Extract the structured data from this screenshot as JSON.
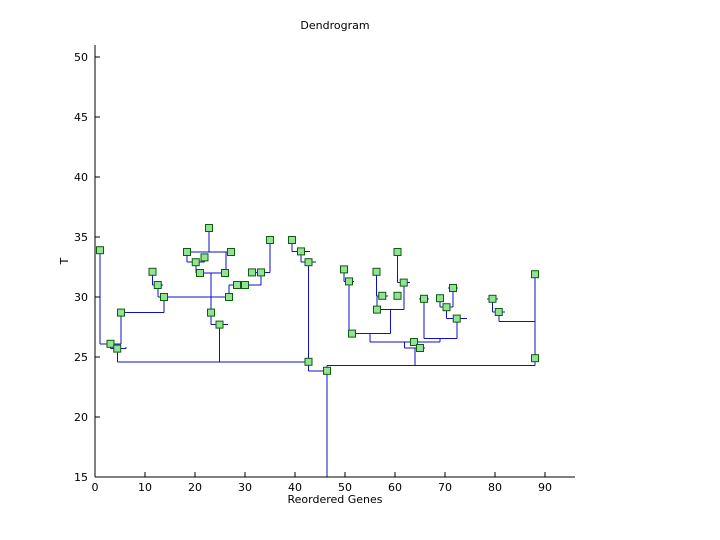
{
  "chart_data": {
    "type": "dendrogram",
    "title": "Dendrogram",
    "xlabel": "Reordered Genes",
    "ylabel": "T",
    "xlim": [
      0,
      96
    ],
    "ylim": [
      15,
      51
    ],
    "xticks": [
      0,
      10,
      20,
      30,
      40,
      50,
      60,
      70,
      80,
      90
    ],
    "yticks": [
      15,
      20,
      25,
      30,
      35,
      40,
      45,
      50
    ],
    "grid": false,
    "legend": "none",
    "line_color": "#0f0fc8",
    "marker_fill": "#94e294",
    "marker_edge": "#0b5e0b",
    "axis_color": "#000000",
    "links_format": "[x1, x2, merge_height, left_child_top, right_child_top]",
    "links": [
      [
        1.0,
        5.2,
        26.1,
        33.9,
        28.7
      ],
      [
        3.1,
        6.2,
        25.7,
        26.1,
        25.85
      ],
      [
        4.45,
        42.7,
        24.6,
        25.7,
        32.9
      ],
      [
        5.2,
        13.8,
        28.7,
        28.7,
        30.0
      ],
      [
        11.5,
        13.6,
        31.0,
        32.1,
        31.0
      ],
      [
        12.55,
        26.8,
        30.0,
        31.0,
        31.0
      ],
      [
        18.4,
        27.2,
        33.75,
        33.75,
        33.75
      ],
      [
        18.4,
        21.9,
        32.9,
        33.75,
        33.3
      ],
      [
        20.15,
        26.2,
        32.0,
        32.9,
        33.75
      ],
      [
        26.8,
        33.2,
        31.0,
        31.0,
        32.05
      ],
      [
        31.4,
        35.0,
        32.05,
        32.05,
        34.75
      ],
      [
        23.2,
        26.6,
        27.7,
        32.0,
        27.7
      ],
      [
        39.4,
        43.0,
        33.8,
        34.75,
        33.8
      ],
      [
        41.2,
        44.2,
        32.9,
        33.8,
        32.9
      ],
      [
        42.7,
        46.4,
        23.85,
        24.6,
        23.85
      ],
      [
        46.4,
        88.0,
        24.3,
        24.3,
        27.95
      ],
      [
        49.8,
        51.8,
        31.3,
        32.3,
        31.3
      ],
      [
        50.8,
        59.1,
        26.95,
        31.3,
        28.95
      ],
      [
        56.3,
        58.6,
        30.1,
        32.1,
        30.1
      ],
      [
        56.4,
        61.75,
        28.95,
        30.1,
        31.2
      ],
      [
        60.5,
        63.0,
        31.2,
        33.75,
        31.2
      ],
      [
        54.95,
        69.0,
        26.25,
        26.95,
        26.55
      ],
      [
        61.9,
        66.0,
        25.75,
        26.25,
        25.75
      ],
      [
        64.8,
        66.8,
        29.85,
        29.85,
        29.85
      ],
      [
        65.8,
        72.35,
        26.55,
        29.85,
        28.2
      ],
      [
        69.0,
        71.6,
        29.15,
        29.9,
        30.75
      ],
      [
        70.6,
        72.6,
        30.75,
        30.75,
        30.75
      ],
      [
        70.3,
        74.4,
        28.2,
        29.15,
        28.2
      ],
      [
        78.4,
        80.6,
        29.85,
        29.85,
        29.85
      ],
      [
        79.5,
        82.0,
        28.75,
        29.85,
        28.75
      ],
      [
        80.75,
        88.0,
        27.95,
        28.75,
        31.9
      ]
    ],
    "stems_format": "extra vertical segments {x, y1, y2}",
    "stems": [
      {
        "x": 22.8,
        "y1": 33.75,
        "y2": 35.75
      },
      {
        "x": 46.4,
        "y1": 15.0,
        "y2": 23.85
      },
      {
        "x": 46.4,
        "y1": 23.85,
        "y2": 24.3
      },
      {
        "x": 63.95,
        "y1": 24.3,
        "y2": 25.75
      },
      {
        "x": 24.9,
        "y1": 24.6,
        "y2": 27.7
      }
    ],
    "markers_format": "cluster node squares [x, T]",
    "markers": [
      [
        1.0,
        33.9
      ],
      [
        3.1,
        26.1
      ],
      [
        4.45,
        25.7
      ],
      [
        5.2,
        28.7
      ],
      [
        11.5,
        32.1
      ],
      [
        12.55,
        31.0
      ],
      [
        13.8,
        30.0
      ],
      [
        18.4,
        33.75
      ],
      [
        20.15,
        32.9
      ],
      [
        21.9,
        33.3
      ],
      [
        21.0,
        32.0
      ],
      [
        26.0,
        32.0
      ],
      [
        22.8,
        35.75
      ],
      [
        27.2,
        33.75
      ],
      [
        28.4,
        31.0
      ],
      [
        26.8,
        30.0
      ],
      [
        30.0,
        31.0
      ],
      [
        31.4,
        32.05
      ],
      [
        33.2,
        32.05
      ],
      [
        35.0,
        34.75
      ],
      [
        23.2,
        28.7
      ],
      [
        24.9,
        27.7
      ],
      [
        39.4,
        34.75
      ],
      [
        41.2,
        33.8
      ],
      [
        42.7,
        32.9
      ],
      [
        42.7,
        24.6
      ],
      [
        46.4,
        23.85
      ],
      [
        49.8,
        32.3
      ],
      [
        50.8,
        31.3
      ],
      [
        51.4,
        26.95
      ],
      [
        56.3,
        32.1
      ],
      [
        57.45,
        30.1
      ],
      [
        56.4,
        28.95
      ],
      [
        60.5,
        30.1
      ],
      [
        60.5,
        33.75
      ],
      [
        61.75,
        31.2
      ],
      [
        65.8,
        29.85
      ],
      [
        63.8,
        26.25
      ],
      [
        65.0,
        25.75
      ],
      [
        69.0,
        29.9
      ],
      [
        70.3,
        29.15
      ],
      [
        71.6,
        30.75
      ],
      [
        72.35,
        28.2
      ],
      [
        79.5,
        29.85
      ],
      [
        80.75,
        28.75
      ],
      [
        88.0,
        31.9
      ],
      [
        88.0,
        24.9
      ]
    ]
  }
}
